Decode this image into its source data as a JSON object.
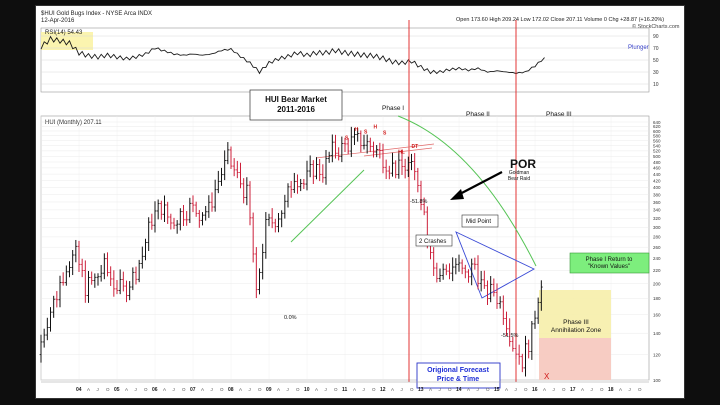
{
  "header": {
    "symbol_line": "$HUI Gold Bugs Index - NYSE Arca  INDX",
    "date": "12-Apr-2016",
    "quote": "Open 173.60  High 209.24  Low 172.02  Close 207.11  Volume 0  Chg +28.87 (+16.20%)",
    "credit": "© StockCharts.com"
  },
  "rsi_panel": {
    "label": "RSI(14) 54.43",
    "right_label": "Plunger",
    "levels": [
      "90",
      "70",
      "50",
      "30",
      "10"
    ]
  },
  "price_panel": {
    "label": "HUI (Monthly) 207.11",
    "y_ticks": [
      "640",
      "620",
      "600",
      "580",
      "560",
      "540",
      "520",
      "500",
      "480",
      "460",
      "440",
      "420",
      "400",
      "380",
      "360",
      "340",
      "320",
      "300",
      "280",
      "260",
      "240",
      "220",
      "200",
      "180",
      "160",
      "140",
      "120",
      "100"
    ]
  },
  "annotations": {
    "title": "HUI Bear Market\n2011-2016",
    "phase1": "Phase I",
    "phase2": "Phase II",
    "phase3": "Phase III",
    "por": "POR",
    "goldman": "Goldman\nBear Raid",
    "midpoint": "Mid Point",
    "crashes": "2 Crashes",
    "pct1": "-51.8%",
    "pct2": "-51.5%",
    "pct0": "0.0%",
    "annihilation": "Phase III\nAnnihilation Zone",
    "return_box": "Phase I Return to\n\"Known Values\"",
    "forecast": "Origional Forecast\nPrice & Time",
    "hs": [
      "S",
      "H",
      "S",
      "H",
      "S",
      "HL",
      "DT"
    ]
  },
  "x_axis": {
    "months": [
      "J",
      "A",
      "J",
      "O"
    ],
    "years": [
      "04",
      "05",
      "06",
      "07",
      "08",
      "09",
      "10",
      "11",
      "12",
      "13",
      "14",
      "15",
      "16",
      "17",
      "18"
    ]
  },
  "chart_data": {
    "type": "ohlc",
    "title": "HUI Bear Market 2011-2016",
    "ylabel": "HUI (Monthly)",
    "ylim": [
      100,
      640
    ],
    "y_scale": "log",
    "xlim": [
      "2003-01",
      "2018-12"
    ],
    "monthly_closes": [
      [
        2003.0,
        120
      ],
      [
        2003.25,
        155
      ],
      [
        2003.5,
        185
      ],
      [
        2003.75,
        230
      ],
      [
        2004.0,
        245
      ],
      [
        2004.25,
        195
      ],
      [
        2004.5,
        205
      ],
      [
        2004.75,
        225
      ],
      [
        2005.0,
        200
      ],
      [
        2005.25,
        190
      ],
      [
        2005.5,
        210
      ],
      [
        2005.75,
        245
      ],
      [
        2006.0,
        320
      ],
      [
        2006.25,
        350
      ],
      [
        2006.5,
        310
      ],
      [
        2006.75,
        330
      ],
      [
        2007.0,
        345
      ],
      [
        2007.25,
        335
      ],
      [
        2007.5,
        340
      ],
      [
        2007.75,
        420
      ],
      [
        2008.0,
        490
      ],
      [
        2008.25,
        430
      ],
      [
        2008.5,
        380
      ],
      [
        2008.75,
        180
      ],
      [
        2009.0,
        300
      ],
      [
        2009.25,
        320
      ],
      [
        2009.5,
        350
      ],
      [
        2009.75,
        440
      ],
      [
        2010.0,
        410
      ],
      [
        2010.25,
        460
      ],
      [
        2010.5,
        450
      ],
      [
        2010.75,
        520
      ],
      [
        2011.0,
        530
      ],
      [
        2011.25,
        555
      ],
      [
        2011.5,
        560
      ],
      [
        2011.75,
        540
      ],
      [
        2012.0,
        510
      ],
      [
        2012.25,
        470
      ],
      [
        2012.5,
        455
      ],
      [
        2012.75,
        470
      ],
      [
        2013.0,
        420
      ],
      [
        2013.25,
        290
      ],
      [
        2013.5,
        210
      ],
      [
        2013.75,
        220
      ],
      [
        2014.0,
        230
      ],
      [
        2014.25,
        210
      ],
      [
        2014.5,
        230
      ],
      [
        2014.75,
        185
      ],
      [
        2015.0,
        190
      ],
      [
        2015.25,
        165
      ],
      [
        2015.5,
        130
      ],
      [
        2015.75,
        115
      ],
      [
        2016.0,
        140
      ],
      [
        2016.25,
        207
      ]
    ],
    "rsi14": [
      [
        2003.0,
        72
      ],
      [
        2003.25,
        85
      ],
      [
        2003.5,
        82
      ],
      [
        2003.75,
        78
      ],
      [
        2004.0,
        62
      ],
      [
        2004.25,
        57
      ],
      [
        2004.5,
        55
      ],
      [
        2004.75,
        58
      ],
      [
        2005.0,
        55
      ],
      [
        2005.25,
        52
      ],
      [
        2005.5,
        55
      ],
      [
        2005.75,
        60
      ],
      [
        2006.0,
        70
      ],
      [
        2006.25,
        65
      ],
      [
        2006.5,
        60
      ],
      [
        2006.75,
        58
      ],
      [
        2007.0,
        60
      ],
      [
        2007.25,
        58
      ],
      [
        2007.5,
        60
      ],
      [
        2007.75,
        66
      ],
      [
        2008.0,
        68
      ],
      [
        2008.25,
        56
      ],
      [
        2008.5,
        45
      ],
      [
        2008.75,
        30
      ],
      [
        2009.0,
        45
      ],
      [
        2009.25,
        52
      ],
      [
        2009.5,
        56
      ],
      [
        2009.75,
        62
      ],
      [
        2010.0,
        58
      ],
      [
        2010.25,
        62
      ],
      [
        2010.5,
        62
      ],
      [
        2010.75,
        66
      ],
      [
        2011.0,
        62
      ],
      [
        2011.25,
        60
      ],
      [
        2011.5,
        58
      ],
      [
        2011.75,
        57
      ],
      [
        2012.0,
        53
      ],
      [
        2012.25,
        47
      ],
      [
        2012.5,
        45
      ],
      [
        2012.75,
        48
      ],
      [
        2013.0,
        38
      ],
      [
        2013.25,
        30
      ],
      [
        2013.5,
        30
      ],
      [
        2013.75,
        34
      ],
      [
        2014.0,
        36
      ],
      [
        2014.25,
        33
      ],
      [
        2014.5,
        36
      ],
      [
        2014.75,
        30
      ],
      [
        2015.0,
        32
      ],
      [
        2015.25,
        30
      ],
      [
        2015.5,
        28
      ],
      [
        2015.75,
        30
      ],
      [
        2016.0,
        40
      ],
      [
        2016.25,
        54
      ]
    ],
    "last_close": 207.11,
    "rsi_last": 54.43
  },
  "colors": {
    "bar_up": "#111111",
    "bar_down": "#cc1f3a",
    "rsi_line": "#1a1a1a",
    "phase_line": "#e02020",
    "trend_green": "#56c456",
    "zone_yellow": "#f4eaa0",
    "zone_pink": "#f7c9c9",
    "return_green": "#7dee7d",
    "title_box": "#ffffff",
    "forecast_blue": "#1f2fd6"
  }
}
